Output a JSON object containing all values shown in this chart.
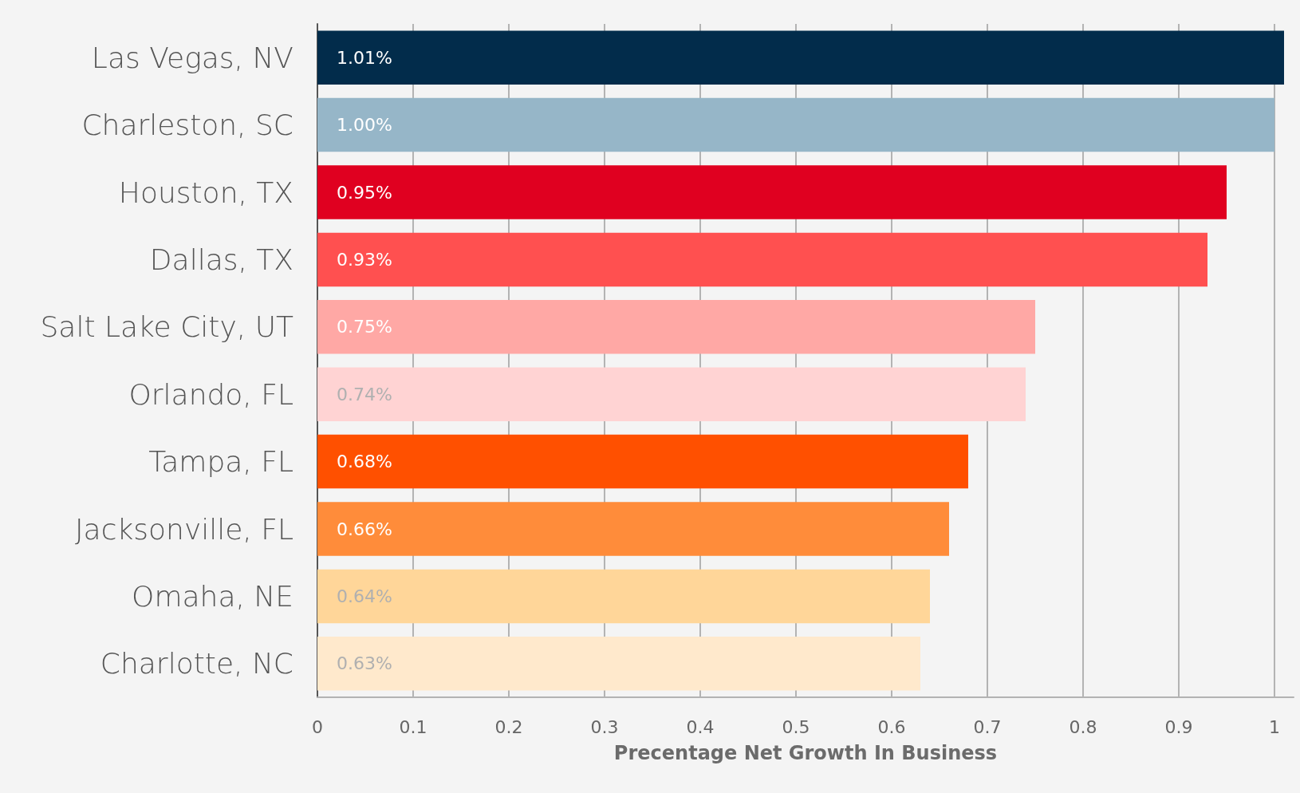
{
  "chart_data": {
    "type": "bar",
    "orientation": "horizontal",
    "xlabel": "Precentage Net Growth In Business",
    "categories": [
      "Las Vegas, NV",
      "Charleston, SC",
      "Houston, TX",
      "Dallas, TX",
      "Salt Lake City, UT",
      "Orlando, FL",
      "Tampa, FL",
      "Jacksonville, FL",
      "Omaha, NE",
      "Charlotte, NC"
    ],
    "values": [
      1.01,
      1.0,
      0.95,
      0.93,
      0.75,
      0.74,
      0.68,
      0.66,
      0.64,
      0.63
    ],
    "value_labels": [
      "1.01%",
      "1.00%",
      "0.95%",
      "0.93%",
      "0.75%",
      "0.74%",
      "0.68%",
      "0.66%",
      "0.64%",
      "0.63%"
    ],
    "colors": [
      "#022c4b",
      "#96b6c8",
      "#e00020",
      "#ff5050",
      "#ffa8a5",
      "#ffd3d3",
      "#ff5000",
      "#ff8c3a",
      "#ffd699",
      "#ffe9cc"
    ],
    "xlim": [
      0,
      1.02
    ],
    "xticks": [
      0,
      0.1,
      0.2,
      0.3,
      0.4,
      0.5,
      0.6,
      0.7,
      0.8,
      0.9,
      1
    ],
    "grid": "x"
  }
}
